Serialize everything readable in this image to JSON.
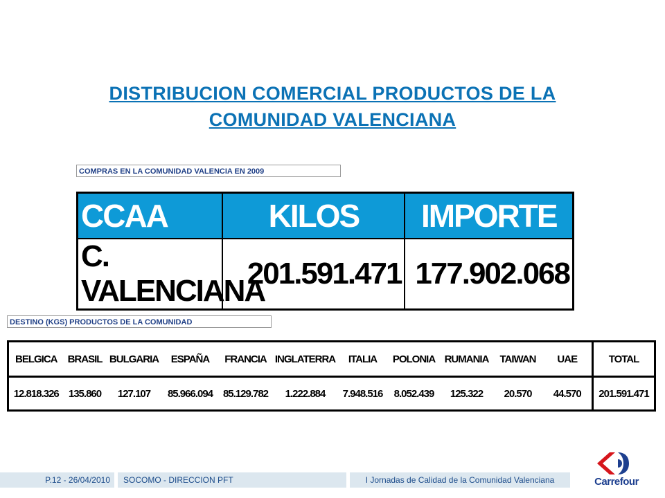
{
  "title": {
    "line1": "DISTRIBUCION COMERCIAL PRODUCTOS DE LA",
    "line2": "COMUNIDAD VALENCIANA"
  },
  "purchases": {
    "caption": "COMPRAS EN LA COMUNIDAD VALENCIA EN 2009",
    "headers": [
      "CCAA",
      "KILOS",
      "IMPORTE"
    ],
    "row": [
      "C. VALENCIANA",
      "201.591.471",
      "177.902.068"
    ]
  },
  "destination": {
    "caption": "DESTINO (KGS) PRODUCTOS DE LA COMUNIDAD",
    "headers": [
      "BELGICA",
      "BRASIL",
      "BULGARIA",
      "ESPAÑA",
      "FRANCIA",
      "INGLATERRA",
      "ITALIA",
      "POLONIA",
      "RUMANIA",
      "TAIWAN",
      "UAE",
      "TOTAL"
    ],
    "values": [
      "12.818.326",
      "135.860",
      "127.107",
      "85.966.094",
      "85.129.782",
      "1.222.884",
      "7.948.516",
      "8.052.439",
      "125.322",
      "20.570",
      "44.570",
      "201.591.471"
    ]
  },
  "footer": {
    "page": "P.12 - 26/04/2010",
    "department": "SOCOMO  - DIRECCION PFT",
    "event": "I Jornadas  de Calidad de la Comunidad Valenciana"
  },
  "logo": {
    "text": "Carrefour",
    "colors": {
      "red": "#d6161c",
      "blue": "#1d3f8f"
    }
  }
}
